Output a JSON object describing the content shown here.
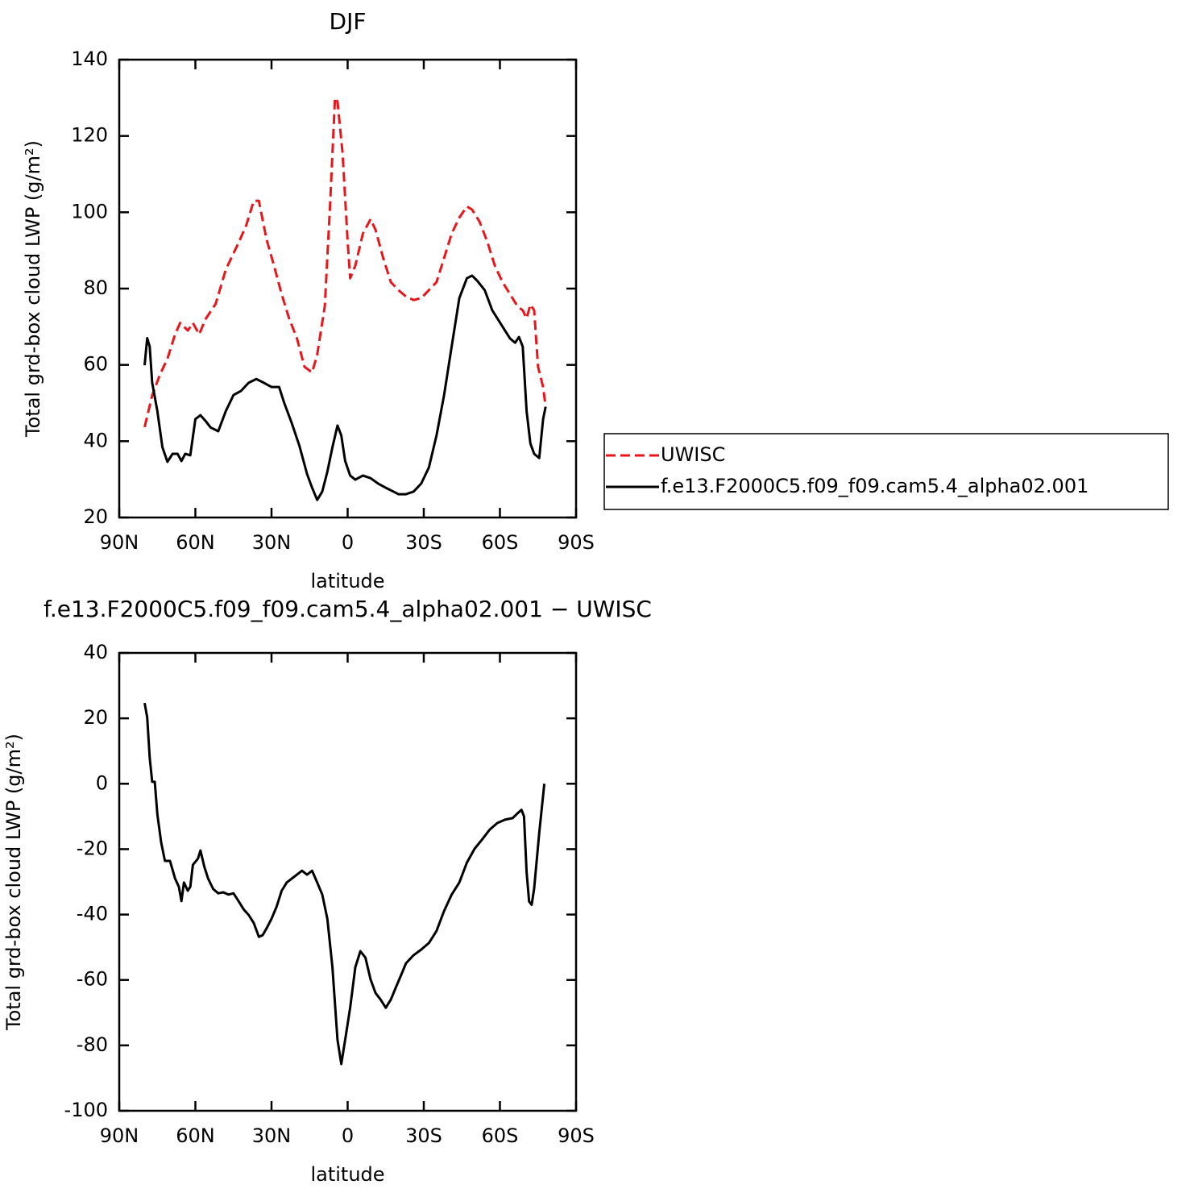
{
  "chart_data": [
    {
      "type": "line",
      "title": "DJF",
      "xlabel": "latitude",
      "ylabel": "Total grd-box cloud LWP (g/m²)",
      "xlim": [
        90,
        -90
      ],
      "xticks": [
        {
          "value": 90,
          "label": "90N"
        },
        {
          "value": 60,
          "label": "60N"
        },
        {
          "value": 30,
          "label": "30N"
        },
        0,
        {
          "value": -30,
          "label": "30S"
        },
        {
          "value": -60,
          "label": "60S"
        },
        {
          "value": -90,
          "label": "90S"
        }
      ],
      "ylim": [
        20,
        140
      ],
      "yticks": [
        20,
        40,
        60,
        80,
        100,
        120,
        140
      ],
      "legend": "right",
      "series": [
        {
          "name": "UWISC",
          "color": "#e8161b",
          "dash": "dashed",
          "x": [
            80,
            77,
            74,
            71,
            68,
            66,
            63,
            61,
            58.5,
            56,
            52,
            48,
            43,
            40,
            37,
            35,
            32,
            29,
            26,
            23,
            20,
            17,
            14,
            12,
            9,
            7,
            5,
            4,
            2,
            0,
            -1,
            -3,
            -6,
            -9,
            -11,
            -14,
            -17,
            -20,
            -23,
            -26,
            -29,
            -32,
            -35,
            -38,
            -41,
            -44,
            -47,
            -49,
            -52,
            -55,
            -58,
            -61,
            -64,
            -67,
            -69,
            -70.5,
            -72,
            -73.5,
            -75,
            -77,
            -78
          ],
          "values": [
            43.7,
            52,
            57.4,
            61.6,
            68,
            71,
            69,
            71,
            68,
            72,
            76,
            85,
            92,
            96.5,
            103,
            103,
            93,
            86,
            78.5,
            72,
            67,
            59.5,
            58,
            62.7,
            75.3,
            100.7,
            130,
            129,
            115.5,
            92.3,
            82.7,
            86,
            94.4,
            98.2,
            95.4,
            88,
            81.7,
            79.6,
            77.9,
            77,
            77.5,
            79.6,
            81.7,
            88,
            94.4,
            98.6,
            101.5,
            100.7,
            97.5,
            92.3,
            86,
            81.7,
            78.5,
            75.3,
            74.3,
            72.2,
            75.8,
            74.3,
            59.5,
            54.2,
            49
          ]
        },
        {
          "name": "f.e13.F2000C5.f09_f09.cam5.4_alpha02.001",
          "color": "#000000",
          "dash": "solid",
          "x": [
            80,
            79,
            78,
            77,
            75,
            73,
            71,
            69,
            67,
            65.5,
            64,
            62,
            60,
            58,
            56,
            54,
            51,
            48,
            45,
            42,
            39,
            36,
            33,
            30,
            27,
            25,
            22,
            19,
            16,
            14,
            12,
            10,
            8,
            6,
            4,
            2.5,
            1,
            -1,
            -3,
            -6,
            -9,
            -12,
            -15,
            -18,
            -20,
            -23,
            -26,
            -29,
            -32,
            -35,
            -38,
            -41,
            -44,
            -47,
            -49,
            -51,
            -54,
            -57,
            -60,
            -62,
            -64,
            -66,
            -67.5,
            -69,
            -70.5,
            -72,
            -73.5,
            -75.5,
            -77,
            -78
          ],
          "values": [
            59.9,
            67,
            64.8,
            55.3,
            47.9,
            38.4,
            34.6,
            36.7,
            36.7,
            34.8,
            36.7,
            36.3,
            45.8,
            46.8,
            45.3,
            43.6,
            42.6,
            47.9,
            52.1,
            53.2,
            55.3,
            56.3,
            55.3,
            54.2,
            54.2,
            50,
            44.7,
            38.8,
            31.4,
            27.8,
            24.6,
            26.8,
            32,
            38.4,
            44.1,
            41.5,
            34.8,
            31,
            29.9,
            31,
            30.3,
            28.9,
            27.8,
            26.8,
            26.1,
            26.1,
            26.8,
            28.9,
            33.1,
            41.5,
            52.1,
            64.8,
            77.5,
            82.7,
            83.4,
            82.1,
            79.6,
            74.3,
            71.1,
            69,
            66.9,
            65.8,
            67.3,
            64.8,
            47.9,
            39.4,
            36.7,
            35.6,
            45.8,
            49
          ]
        }
      ]
    },
    {
      "type": "line",
      "title": "f.e13.F2000C5.f09_f09.cam5.4_alpha02.001 − UWISC",
      "xlabel": "latitude",
      "ylabel": "Total grd-box cloud LWP (g/m²)",
      "xlim": [
        90,
        -90
      ],
      "xticks": [
        {
          "value": 90,
          "label": "90N"
        },
        {
          "value": 60,
          "label": "60N"
        },
        {
          "value": 30,
          "label": "30N"
        },
        0,
        {
          "value": -30,
          "label": "30S"
        },
        {
          "value": -60,
          "label": "60S"
        },
        {
          "value": -90,
          "label": "90S"
        }
      ],
      "ylim": [
        -100,
        40
      ],
      "yticks": [
        -100,
        -80,
        -60,
        -40,
        -20,
        0,
        20,
        40
      ],
      "series": [
        {
          "color": "#000000",
          "dash": "solid",
          "x": [
            80,
            79,
            78,
            77,
            76,
            75,
            73.5,
            72,
            70,
            68,
            66.5,
            65.5,
            64.5,
            63,
            62,
            61,
            59,
            58,
            56.5,
            55,
            53,
            51,
            49,
            47,
            45,
            43,
            41,
            39,
            37,
            35,
            33.5,
            32,
            30,
            28,
            26,
            24,
            22,
            20,
            18,
            16,
            14,
            12,
            10,
            8,
            6,
            4,
            2.5,
            1,
            -1,
            -3,
            -5,
            -7,
            -9,
            -11,
            -13,
            -15,
            -17,
            -19,
            -21,
            -23,
            -26,
            -29,
            -32,
            -35,
            -38,
            -41,
            -44,
            -47,
            -50,
            -53,
            -56,
            -59,
            -62,
            -65,
            -67,
            -68.5,
            -69.5,
            -70.5,
            -71.5,
            -72.5,
            -73.5,
            -75.5,
            -77.5
          ],
          "values": [
            24.7,
            20.3,
            8,
            0.6,
            0.6,
            -9.3,
            -17.9,
            -23.6,
            -23.6,
            -29,
            -31.5,
            -35.9,
            -30.2,
            -32.7,
            -31.5,
            -24.8,
            -22.9,
            -20.4,
            -25.3,
            -29,
            -32.2,
            -33.5,
            -33.2,
            -33.9,
            -33.5,
            -35.9,
            -38.4,
            -40.1,
            -42.6,
            -46.8,
            -46.3,
            -44.3,
            -41.3,
            -37.6,
            -32.7,
            -30.2,
            -29,
            -27.8,
            -26.6,
            -27.8,
            -26.6,
            -30.2,
            -33.9,
            -41.3,
            -56.1,
            -78.3,
            -85.7,
            -78.3,
            -68.5,
            -56.1,
            -51.2,
            -53.2,
            -59.8,
            -64,
            -66,
            -68.5,
            -66,
            -62.3,
            -58.6,
            -54.9,
            -52.4,
            -50.7,
            -48.7,
            -45,
            -38.9,
            -33.9,
            -30.2,
            -24.1,
            -19.9,
            -17,
            -14,
            -12,
            -11,
            -10.5,
            -9,
            -8,
            -10,
            -27,
            -36,
            -37,
            -32,
            -15,
            0
          ]
        }
      ]
    }
  ]
}
